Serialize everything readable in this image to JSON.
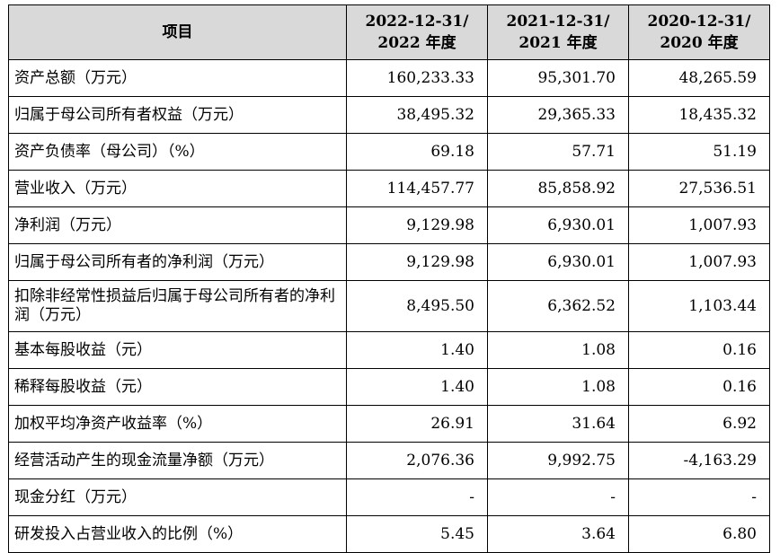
{
  "header": {
    "item": "项目",
    "years": [
      {
        "line1": "2022-12-31/",
        "line2": "2022 年度"
      },
      {
        "line1": "2021-12-31/",
        "line2": "2021 年度"
      },
      {
        "line1": "2020-12-31/",
        "line2": "2020 年度"
      }
    ]
  },
  "rows": [
    {
      "label": "资产总额（万元）",
      "values": [
        "160,233.33",
        "95,301.70",
        "48,265.59"
      ]
    },
    {
      "label": "归属于母公司所有者权益（万元）",
      "values": [
        "38,495.32",
        "29,365.33",
        "18,435.32"
      ]
    },
    {
      "label": "资产负债率（母公司）（%）",
      "values": [
        "69.18",
        "57.71",
        "51.19"
      ]
    },
    {
      "label": "营业收入（万元）",
      "values": [
        "114,457.77",
        "85,858.92",
        "27,536.51"
      ]
    },
    {
      "label": "净利润（万元）",
      "values": [
        "9,129.98",
        "6,930.01",
        "1,007.93"
      ]
    },
    {
      "label": "归属于母公司所有者的净利润（万元）",
      "values": [
        "9,129.98",
        "6,930.01",
        "1,007.93"
      ]
    },
    {
      "label": "扣除非经常性损益后归属于母公司所有者的净利润（万元）",
      "values": [
        "8,495.50",
        "6,362.52",
        "1,103.44"
      ]
    },
    {
      "label": "基本每股收益（元）",
      "values": [
        "1.40",
        "1.08",
        "0.16"
      ]
    },
    {
      "label": "稀释每股收益（元）",
      "values": [
        "1.40",
        "1.08",
        "0.16"
      ]
    },
    {
      "label": "加权平均净资产收益率（%）",
      "values": [
        "26.91",
        "31.64",
        "6.92"
      ]
    },
    {
      "label": "经营活动产生的现金流量净额（万元）",
      "values": [
        "2,076.36",
        "9,992.75",
        "-4,163.29"
      ]
    },
    {
      "label": "现金分红（万元）",
      "values": [
        "-",
        "-",
        "-"
      ]
    },
    {
      "label": "研发投入占营业收入的比例（%）",
      "values": [
        "5.45",
        "3.64",
        "6.80"
      ]
    }
  ]
}
